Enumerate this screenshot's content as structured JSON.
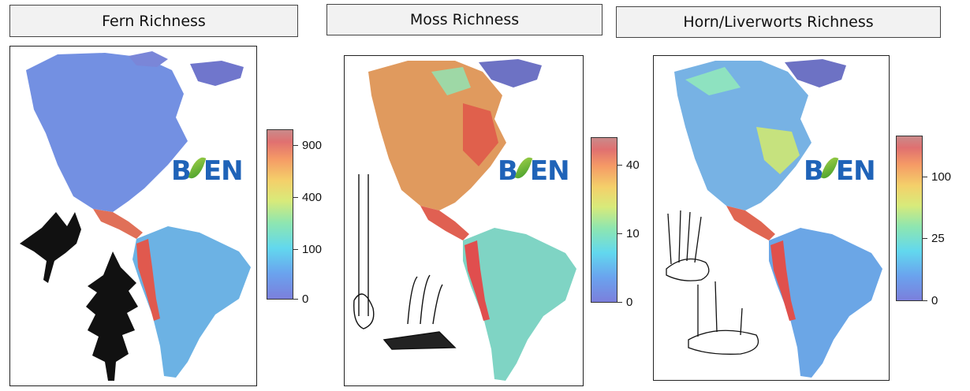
{
  "panels": [
    {
      "title": "Fern Richness",
      "legend_ticks": [
        "900",
        "400",
        "100",
        "0"
      ],
      "logo_text": "BIEN",
      "colors": {
        "north_america": "#7390e2",
        "tropics": "#e0705a",
        "south_america": "#6cb2e4"
      }
    },
    {
      "title": "Moss Richness",
      "legend_ticks": [
        "40",
        "10",
        "0"
      ],
      "logo_text": "BIEN",
      "colors": {
        "north_america": "#e09a5e",
        "tropics": "#e05f55",
        "south_america": "#7fd4c4"
      }
    },
    {
      "title": "Horn/Liverworts Richness",
      "legend_ticks": [
        "100",
        "25",
        "0"
      ],
      "logo_text": "BIEN",
      "colors": {
        "north_america": "#77b2e4",
        "tropics": "#e06a55",
        "south_america": "#6ba6e6"
      }
    }
  ],
  "colorscale": [
    "#7b7fdc",
    "#62d8ee",
    "#d8ea7a",
    "#f59a66",
    "#c98a8a"
  ],
  "icons": [
    "fern-frond-icon",
    "moss-plant-icon",
    "liverwort-plant-icon",
    "bien-leaf-icon"
  ]
}
